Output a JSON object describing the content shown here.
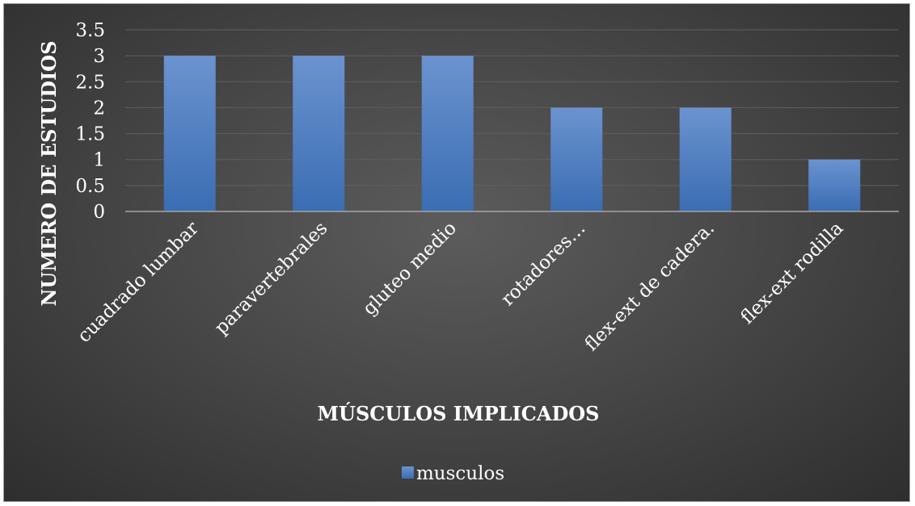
{
  "chart_data": {
    "type": "bar",
    "categories": [
      "cuadrado lumbar",
      "paravertebrales",
      "gluteo medio",
      "rotadores…",
      "flex-ext de cadera.",
      "flex-ext rodilla"
    ],
    "series": [
      {
        "name": "musculos",
        "values": [
          3,
          3,
          3,
          2,
          2,
          1
        ]
      }
    ],
    "yticks": [
      "0",
      "0.5",
      "1",
      "1.5",
      "2",
      "2.5",
      "3",
      "3.5"
    ],
    "ylim": [
      0,
      3.5
    ],
    "xlabel": "MÚSCULOS IMPLICADOS",
    "ylabel": "NUMERO DE ESTUDIOS",
    "grid": true,
    "legend_position": "bottom",
    "colors": {
      "bar_top": "#6b93cf",
      "bar_bottom": "#3a6db3",
      "text": "#ffffff",
      "grid": "#5f5f5f",
      "axis": "#a6a6a6"
    }
  }
}
